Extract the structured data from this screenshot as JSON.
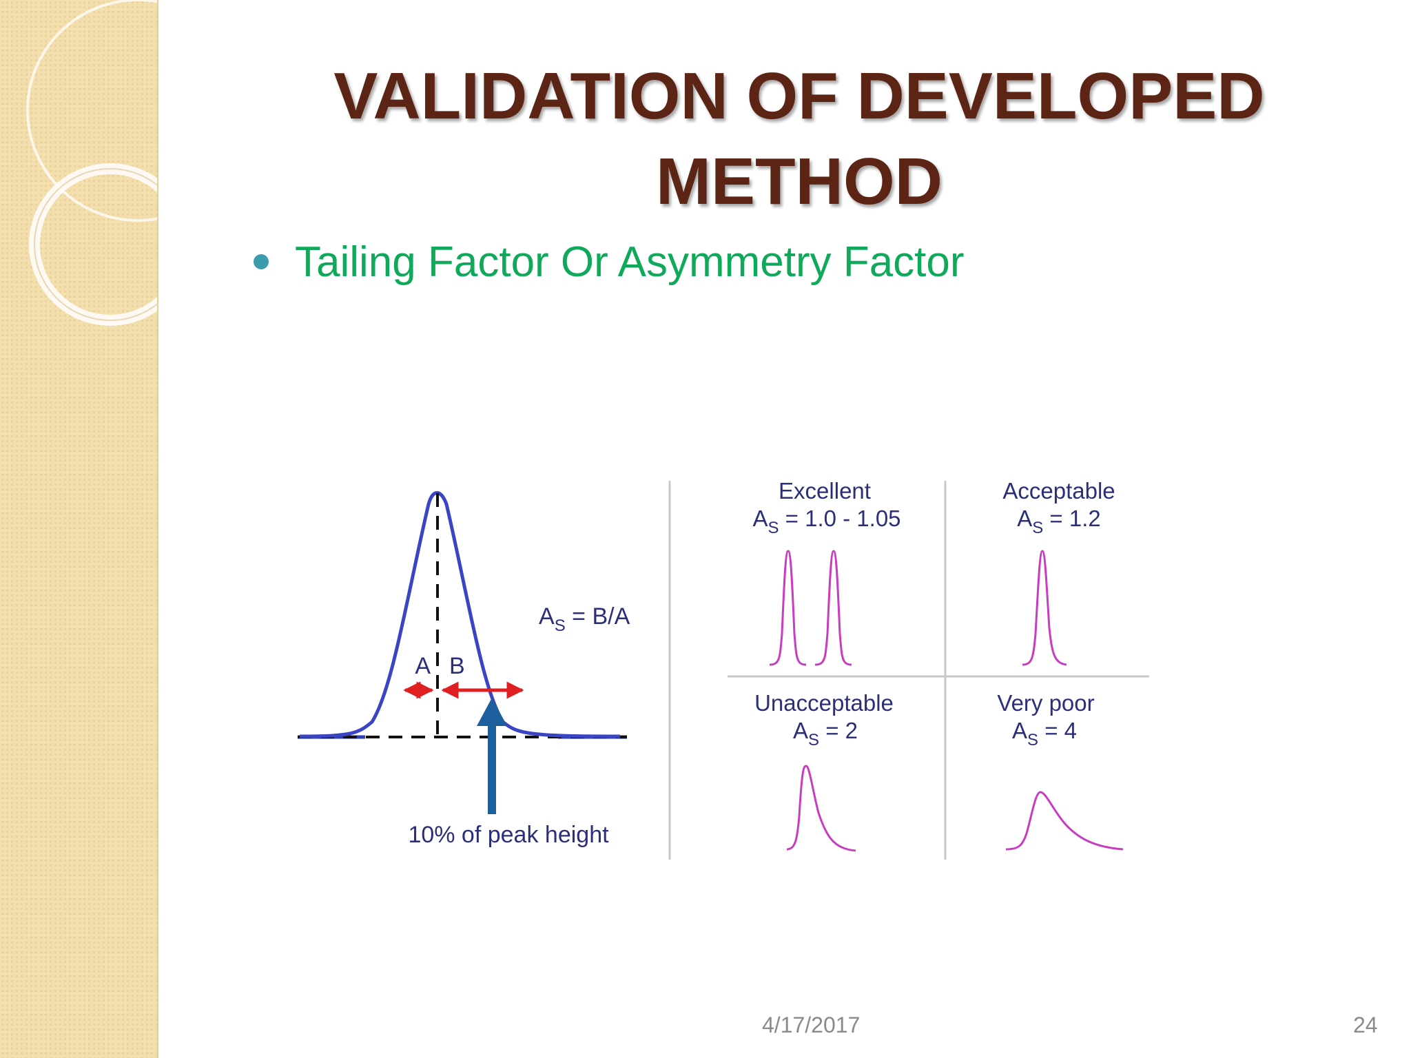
{
  "slide": {
    "title_line1": "VALIDATION OF DEVELOPED",
    "title_line2": "METHOD",
    "bullet": "Tailing Factor Or Asymmetry Factor",
    "footer_date": "4/17/2017",
    "page_number": "24"
  },
  "diagram": {
    "label_a": "A",
    "label_b": "B",
    "formula_main": "A",
    "formula_sub": "S",
    "formula_rest": " = B/A",
    "peak_height_caption": "10% of peak height",
    "colors": {
      "gaussian": "#3b44c4",
      "measure_arrows": "#e02020",
      "pointer_arrow": "#1d5f9c",
      "example_peaks": "#c83cc0",
      "labels": "#2b2f7a",
      "dividers": "#c8c8c8"
    },
    "examples": [
      {
        "quality": "Excellent",
        "as_main": "A",
        "as_sub": "S",
        "as_value": " = 1.0 - 1.05"
      },
      {
        "quality": "Acceptable",
        "as_main": "A",
        "as_sub": "S",
        "as_value": " = 1.2"
      },
      {
        "quality": "Unacceptable",
        "as_main": "A",
        "as_sub": "S",
        "as_value": " = 2"
      },
      {
        "quality": "Very poor",
        "as_main": "A",
        "as_sub": "S",
        "as_value": " = 4"
      }
    ]
  }
}
